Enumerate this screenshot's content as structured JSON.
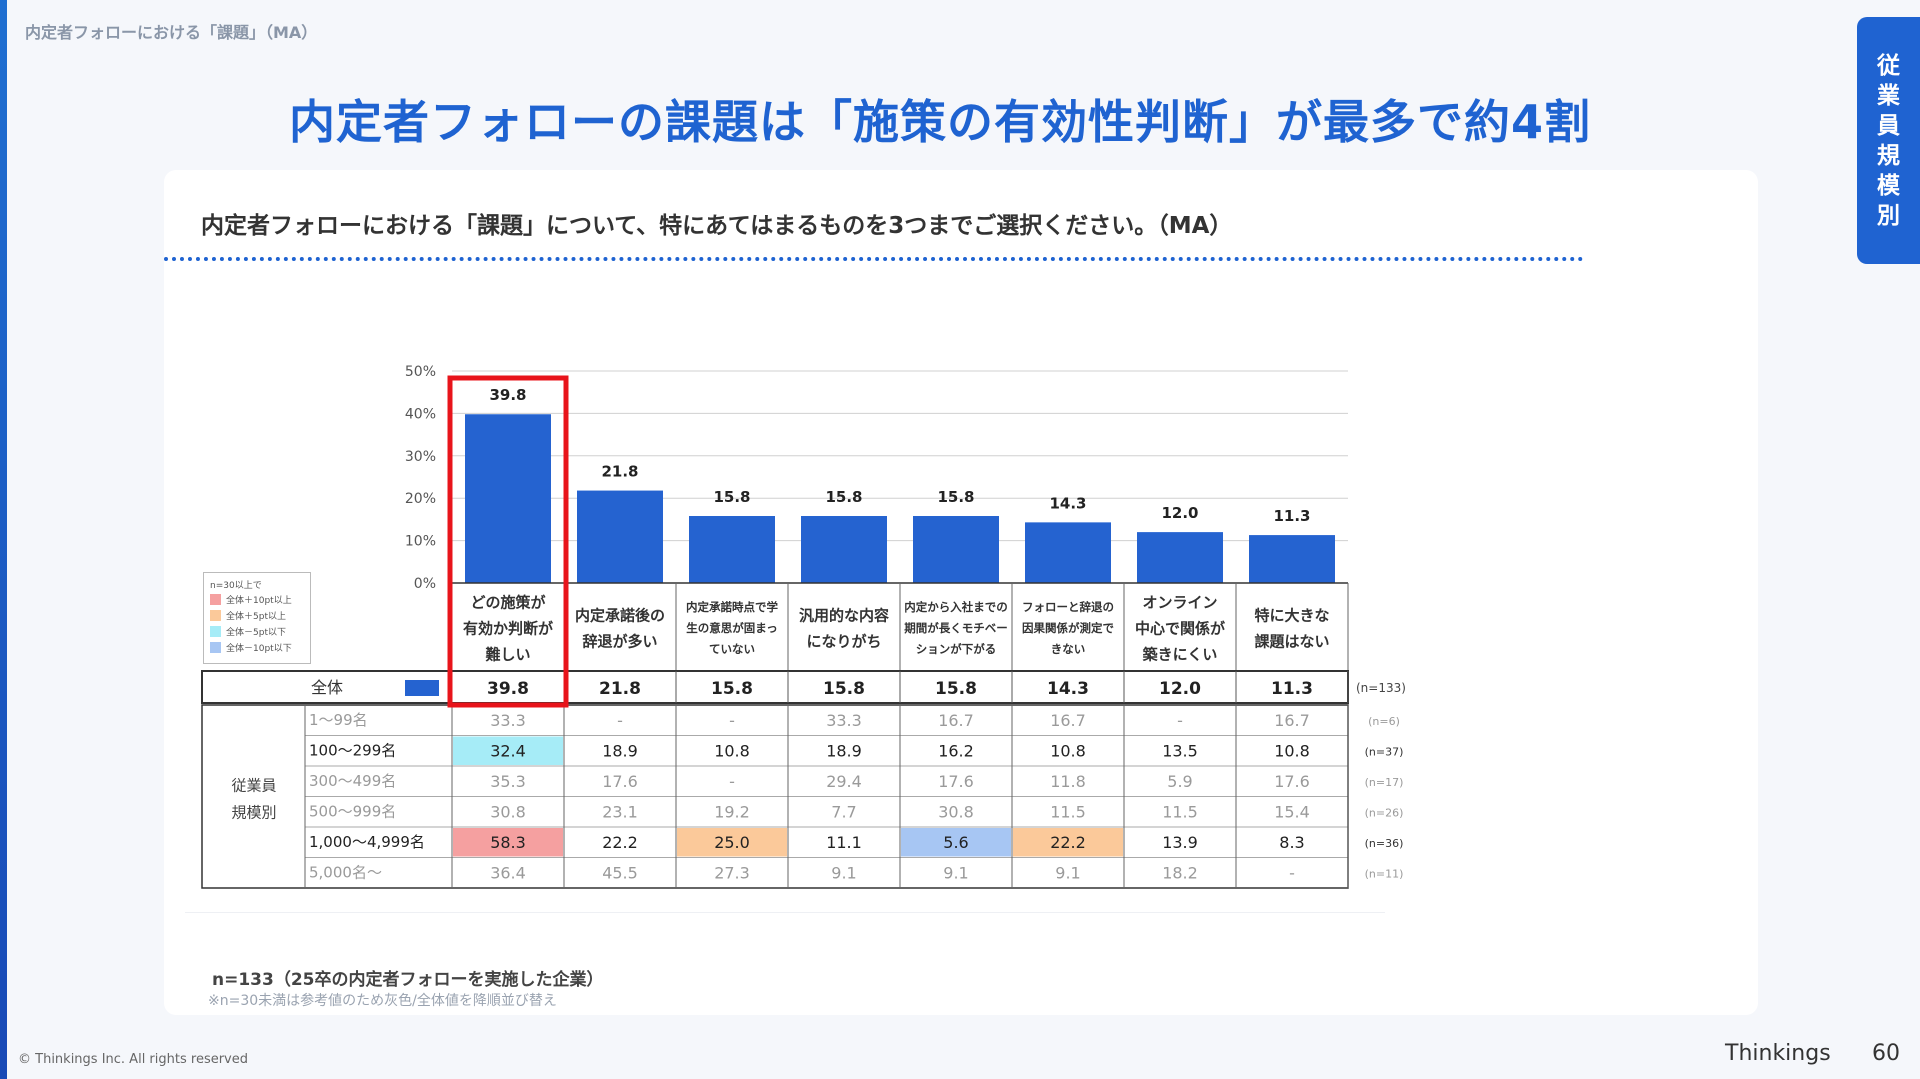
{
  "header": {
    "breadcrumb": "内定者フォローにおける「課題」（MA）",
    "title": "内定者フォローの課題は「施策の有効性判断」が最多で約4割",
    "side_tab": [
      "従",
      "業",
      "員",
      "規",
      "模",
      "別"
    ]
  },
  "question": "内定者フォローにおける「課題」について、特にあてはまるものを3つまでご選択ください。（MA）",
  "legend": {
    "title": "n=30以上で",
    "items": [
      {
        "label": "全体＋10pt以上",
        "color": "#f5a0a0"
      },
      {
        "label": "全体＋5pt以上",
        "color": "#fbc99a"
      },
      {
        "label": "全体－5pt以下",
        "color": "#a6ecf7"
      },
      {
        "label": "全体－10pt以下",
        "color": "#a7c6f3"
      }
    ]
  },
  "chart_data": {
    "type": "bar",
    "categories": [
      [
        "どの施策が",
        "有効か判断が",
        "難しい"
      ],
      [
        "内定承諾後の",
        "辞退が多い"
      ],
      [
        "内定承諾時点で学",
        "生の意思が固まっ",
        "ていない"
      ],
      [
        "汎用的な内容",
        "になりがち"
      ],
      [
        "内定から入社までの",
        "期間が長くモチベー",
        "ションが下がる"
      ],
      [
        "フォローと辞退の",
        "因果関係が測定で",
        "きない"
      ],
      [
        "オンライン",
        "中心で関係が",
        "築きにくい"
      ],
      [
        "特に大きな",
        "課題はない"
      ]
    ],
    "values": [
      39.8,
      21.8,
      15.8,
      15.8,
      15.8,
      14.3,
      12.0,
      11.3
    ],
    "value_labels": [
      "39.8",
      "21.8",
      "15.8",
      "15.8",
      "15.8",
      "14.3",
      "12.0",
      "11.3"
    ],
    "yticks": [
      "0%",
      "10%",
      "20%",
      "30%",
      "40%",
      "50%"
    ],
    "ylim": [
      0,
      50
    ],
    "grid": true,
    "bar_color": "#2563d0",
    "highlight_index": 0,
    "highlight_color": "#e8141b",
    "table": {
      "total_row": {
        "label": "全体",
        "values": [
          "39.8",
          "21.8",
          "15.8",
          "15.8",
          "15.8",
          "14.3",
          "12.0",
          "11.3"
        ],
        "n": "(n=133)"
      },
      "group_label": [
        "従業員",
        "規模別"
      ],
      "rows": [
        {
          "label": "1～99名",
          "values": [
            "33.3",
            "-",
            "-",
            "33.3",
            "16.7",
            "16.7",
            "-",
            "16.7"
          ],
          "n": "(n=6)",
          "gray": true,
          "highlights": [
            null,
            null,
            null,
            null,
            null,
            null,
            null,
            null
          ]
        },
        {
          "label": "100～299名",
          "values": [
            "32.4",
            "18.9",
            "10.8",
            "18.9",
            "16.2",
            "10.8",
            "13.5",
            "10.8"
          ],
          "n": "(n=37)",
          "gray": false,
          "highlights": [
            "#a6ecf7",
            null,
            null,
            null,
            null,
            null,
            null,
            null
          ]
        },
        {
          "label": "300～499名",
          "values": [
            "35.3",
            "17.6",
            "-",
            "29.4",
            "17.6",
            "11.8",
            "5.9",
            "17.6"
          ],
          "n": "(n=17)",
          "gray": true,
          "highlights": [
            null,
            null,
            null,
            null,
            null,
            null,
            null,
            null
          ]
        },
        {
          "label": "500～999名",
          "values": [
            "30.8",
            "23.1",
            "19.2",
            "7.7",
            "30.8",
            "11.5",
            "11.5",
            "15.4"
          ],
          "n": "(n=26)",
          "gray": true,
          "highlights": [
            null,
            null,
            null,
            null,
            null,
            null,
            null,
            null
          ]
        },
        {
          "label": "1,000～4,999名",
          "values": [
            "58.3",
            "22.2",
            "25.0",
            "11.1",
            "5.6",
            "22.2",
            "13.9",
            "8.3"
          ],
          "n": "(n=36)",
          "gray": false,
          "highlights": [
            "#f5a0a0",
            null,
            "#fbc99a",
            null,
            "#a7c6f3",
            "#fbc99a",
            null,
            null
          ]
        },
        {
          "label": "5,000名～",
          "values": [
            "36.4",
            "45.5",
            "27.3",
            "9.1",
            "9.1",
            "9.1",
            "18.2",
            "-"
          ],
          "n": "(n=11)",
          "gray": true,
          "highlights": [
            null,
            null,
            null,
            null,
            null,
            null,
            null,
            null
          ]
        }
      ]
    }
  },
  "footer": {
    "n_note": "n=133（25卒の内定者フォローを実施した企業）",
    "n_sub": "※n=30未満は参考値のため灰色/全体値を降順並び替え",
    "copyright": "© Thinkings Inc. All rights reserved",
    "brand": "Thinkings",
    "page": "60"
  }
}
